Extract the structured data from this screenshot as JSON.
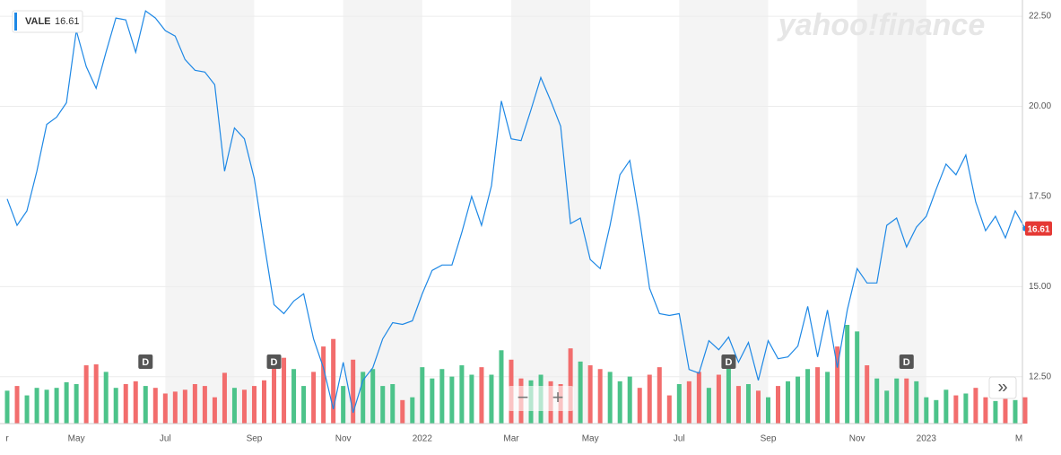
{
  "chart_data": {
    "type": "line",
    "logo": "yahoo!finance",
    "categories": [
      "r",
      null,
      null,
      null,
      null,
      null,
      null,
      "May",
      null,
      null,
      null,
      null,
      null,
      null,
      null,
      null,
      "Jul",
      null,
      null,
      null,
      null,
      null,
      null,
      null,
      null,
      "Sep",
      null,
      null,
      null,
      null,
      null,
      null,
      null,
      null,
      "Nov",
      null,
      null,
      null,
      null,
      null,
      null,
      null,
      "2022",
      null,
      null,
      null,
      null,
      null,
      null,
      null,
      null,
      "Mar",
      null,
      null,
      null,
      null,
      null,
      null,
      null,
      "May",
      null,
      null,
      null,
      null,
      null,
      null,
      null,
      null,
      "Jul",
      null,
      null,
      null,
      null,
      null,
      null,
      null,
      null,
      "Sep",
      null,
      null,
      null,
      null,
      null,
      null,
      null,
      null,
      "Nov",
      null,
      null,
      null,
      null,
      null,
      null,
      "2023",
      null,
      null,
      null,
      null,
      null,
      null,
      null,
      null,
      null,
      "M"
    ],
    "series": [
      {
        "name": "VALE",
        "color": "#1e88e5",
        "values": [
          17.43,
          16.7,
          17.1,
          18.2,
          19.5,
          19.7,
          20.1,
          22.1,
          21.1,
          20.5,
          21.5,
          22.45,
          22.4,
          21.5,
          22.65,
          22.45,
          22.1,
          21.95,
          21.3,
          21.0,
          20.95,
          20.6,
          18.2,
          19.4,
          19.1,
          18.0,
          16.2,
          14.5,
          14.25,
          14.6,
          14.8,
          13.55,
          12.75,
          11.6,
          12.9,
          11.5,
          12.4,
          12.75,
          13.55,
          14.0,
          13.95,
          14.05,
          14.8,
          15.45,
          15.6,
          15.6,
          16.5,
          17.5,
          16.7,
          17.8,
          20.15,
          19.1,
          19.05,
          19.9,
          20.8,
          20.15,
          19.45,
          16.75,
          16.9,
          15.75,
          15.5,
          16.7,
          18.1,
          18.5,
          16.85,
          14.95,
          14.25,
          14.2,
          14.25,
          12.7,
          12.6,
          13.5,
          13.25,
          13.6,
          12.9,
          13.45,
          12.4,
          13.5,
          13.0,
          13.05,
          13.35,
          14.45,
          13.05,
          14.35,
          12.75,
          14.35,
          15.5,
          15.1,
          15.1,
          16.7,
          16.9,
          16.1,
          16.65,
          16.95,
          17.7,
          18.4,
          18.1,
          18.65,
          17.35,
          16.55,
          16.95,
          16.35,
          17.1,
          16.61
        ]
      }
    ],
    "volume": [
      35,
      40,
      30,
      38,
      36,
      38,
      44,
      42,
      62,
      63,
      55,
      38,
      42,
      45,
      40,
      38,
      32,
      34,
      36,
      42,
      40,
      28,
      54,
      38,
      36,
      40,
      46,
      60,
      70,
      58,
      40,
      55,
      82,
      90,
      40,
      68,
      55,
      58,
      40,
      42,
      25,
      28,
      60,
      48,
      58,
      50,
      62,
      52,
      60,
      52,
      78,
      68,
      48,
      46,
      52,
      45,
      42,
      80,
      66,
      62,
      58,
      55,
      45,
      50,
      38,
      52,
      60,
      30,
      42,
      45,
      55,
      38,
      52,
      60,
      40,
      42,
      35,
      28,
      40,
      45,
      50,
      58,
      60,
      55,
      82,
      105,
      98,
      62,
      48,
      35,
      48,
      48,
      45,
      28,
      25,
      36,
      30,
      32,
      38,
      28,
      24,
      30,
      25,
      28
    ],
    "up_color": "#4cc38a",
    "down_color": "#f26d6d",
    "dividend_markers": [
      {
        "at": 14,
        "label": "D"
      },
      {
        "at": 27,
        "label": "D"
      },
      {
        "at": 73,
        "label": "D"
      },
      {
        "at": 91,
        "label": "D"
      }
    ],
    "ylim": [
      11.2,
      22.95
    ],
    "yticks": [
      {
        "value": 12.5,
        "label": "12.50"
      },
      {
        "value": 15,
        "label": "15.00"
      },
      {
        "value": 17.5,
        "label": "17.50"
      },
      {
        "value": 20,
        "label": "20.00"
      },
      {
        "value": 22.5,
        "label": "22.50"
      }
    ],
    "grid": true,
    "controls": {
      "zoom_out": "−",
      "zoom_in": "+",
      "expand": "»"
    }
  }
}
